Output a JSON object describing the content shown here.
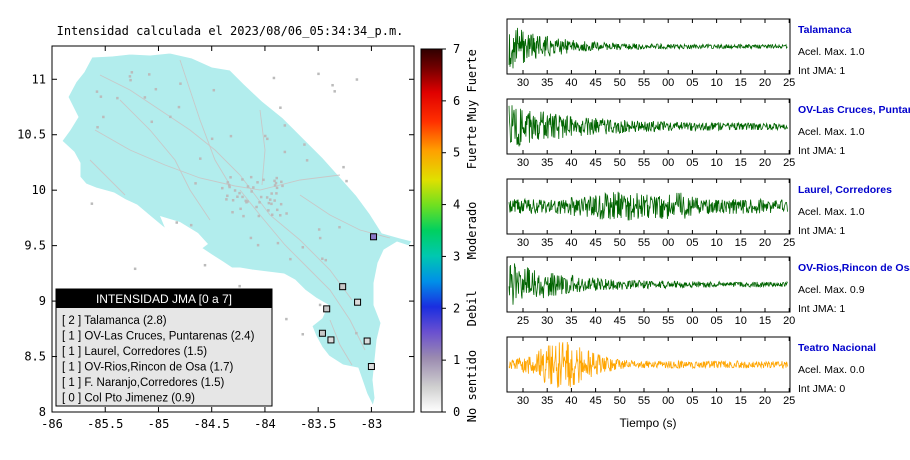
{
  "map": {
    "title": "Intensidad calculada el 2023/08/06_05:34:34_p.m.",
    "x_ticks": [
      "-86",
      "-85.5",
      "-85",
      "-84.5",
      "-84",
      "-83.5",
      "-83"
    ],
    "y_ticks": [
      "11",
      "10.5",
      "10",
      "9.5",
      "9",
      "8.5",
      "8"
    ],
    "xlim": [
      -86,
      -82.6
    ],
    "ylim": [
      8,
      11.3
    ],
    "land_color": "#b2eded",
    "ocean_color": "#ffffff"
  },
  "colorbar": {
    "ticks": [
      "0",
      "1",
      "2",
      "3",
      "4",
      "5",
      "6",
      "7"
    ],
    "labels": [
      "No sentido",
      "Debil",
      "Moderado",
      "Fuerte",
      "Muy Fuerte"
    ]
  },
  "legend": {
    "title": "INTENSIDAD JMA [0 a 7]",
    "entries": [
      "[ 2 ] Talamanca (2.8)",
      "[ 1 ] OV-Las Cruces, Puntarenas (2.4)",
      "[ 1 ] Laurel, Corredores (1.5)",
      "[ 1 ] OV-Rios,Rincon de Osa (1.7)",
      "[ 1 ] F. Naranjo,Corredores (1.5)",
      "[ 0 ] Col Pto Jimenez (0.9)"
    ]
  },
  "stations_on_map": [
    {
      "lon": -82.98,
      "lat": 9.58,
      "intensity": 2
    },
    {
      "lon": -83.27,
      "lat": 9.13,
      "intensity": 1
    },
    {
      "lon": -83.13,
      "lat": 8.99,
      "intensity": 0
    },
    {
      "lon": -83.42,
      "lat": 8.93,
      "intensity": 1
    },
    {
      "lon": -83.46,
      "lat": 8.71,
      "intensity": 1
    },
    {
      "lon": -83.38,
      "lat": 8.65,
      "intensity": 0
    },
    {
      "lon": -83.04,
      "lat": 8.64,
      "intensity": 0
    },
    {
      "lon": -83.0,
      "lat": 8.41,
      "intensity": 0
    }
  ],
  "traces": {
    "xlabel": "Tiempo (s)",
    "panels": [
      {
        "name": "Talamanca",
        "accel": "Acel. Max. 1.0",
        "jma": "Int JMA: 1",
        "ticks": [
          "30",
          "35",
          "40",
          "45",
          "50",
          "55",
          "00",
          "05",
          "10",
          "15",
          "20",
          "25"
        ],
        "color": "#006400",
        "seed": 3,
        "env": "decay"
      },
      {
        "name": "OV-Las Cruces, Puntarenas",
        "accel": "Acel. Max. 1.0",
        "jma": "Int JMA: 1",
        "ticks": [
          "30",
          "35",
          "40",
          "45",
          "50",
          "55",
          "00",
          "05",
          "10",
          "15",
          "20",
          "25"
        ],
        "color": "#006400",
        "seed": 7,
        "env": "decay2"
      },
      {
        "name": "Laurel, Corredores",
        "accel": "Acel. Max. 1.0",
        "jma": "Int JMA: 1",
        "ticks": [
          "30",
          "35",
          "40",
          "45",
          "50",
          "55",
          "00",
          "05",
          "10",
          "15",
          "20",
          "25"
        ],
        "color": "#006400",
        "seed": 11,
        "env": "flat"
      },
      {
        "name": "OV-Rios,Rincon de Osa",
        "accel": "Acel. Max. 0.9",
        "jma": "Int JMA: 1",
        "ticks": [
          "25",
          "30",
          "35",
          "40",
          "45",
          "50",
          "55",
          "00",
          "05",
          "10",
          "15",
          "20"
        ],
        "color": "#006400",
        "seed": 19,
        "env": "decay3"
      },
      {
        "name": "Teatro Nacional",
        "accel": "Acel. Max. 0.0",
        "jma": "Int JMA: 0",
        "ticks": [
          "30",
          "35",
          "40",
          "45",
          "50",
          "55",
          "00",
          "05",
          "10",
          "15",
          "20",
          "25"
        ],
        "color": "#ffa500",
        "seed": 23,
        "env": "bump"
      }
    ]
  },
  "chart_data": [
    {
      "type": "scatter",
      "title": "Intensidad calculada el 2023/08/06_05:34:34_p.m.",
      "xlim": [
        -86,
        -82.6
      ],
      "ylim": [
        8,
        11.3
      ],
      "legend_title": "INTENSIDAD JMA [0 a 7]",
      "series": [
        {
          "name": "Talamanca",
          "jma": 2,
          "value": 2.8
        },
        {
          "name": "OV-Las Cruces, Puntarenas",
          "jma": 1,
          "value": 2.4
        },
        {
          "name": "Laurel, Corredores",
          "jma": 1,
          "value": 1.5
        },
        {
          "name": "OV-Rios,Rincon de Osa",
          "jma": 1,
          "value": 1.7
        },
        {
          "name": "F. Naranjo,Corredores",
          "jma": 1,
          "value": 1.5
        },
        {
          "name": "Col Pto Jimenez",
          "jma": 0,
          "value": 0.9
        }
      ]
    },
    {
      "type": "line",
      "xlabel": "Tiempo (s)",
      "series": [
        {
          "name": "Talamanca",
          "acel_max": 1.0,
          "int_jma": 1
        },
        {
          "name": "OV-Las Cruces, Puntarenas",
          "acel_max": 1.0,
          "int_jma": 1
        },
        {
          "name": "Laurel, Corredores",
          "acel_max": 1.0,
          "int_jma": 1
        },
        {
          "name": "OV-Rios,Rincon de Osa",
          "acel_max": 0.9,
          "int_jma": 1
        },
        {
          "name": "Teatro Nacional",
          "acel_max": 0.0,
          "int_jma": 0
        }
      ]
    }
  ]
}
